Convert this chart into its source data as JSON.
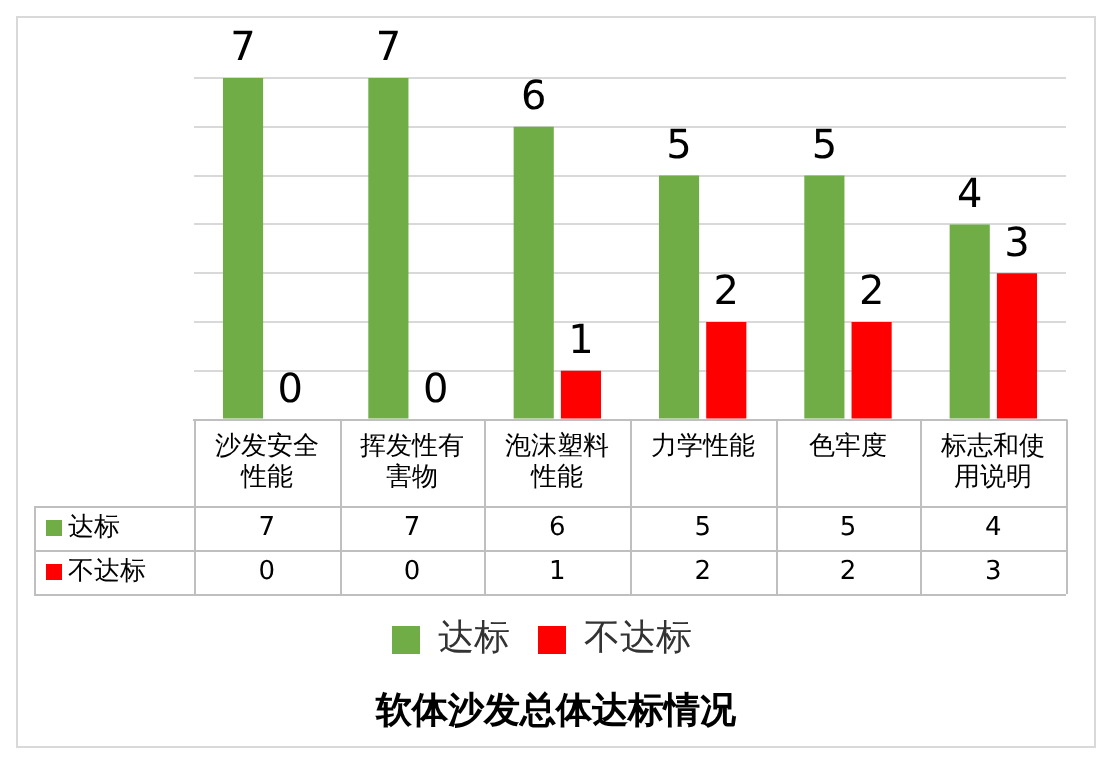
{
  "chart_data": {
    "type": "bar",
    "title": "软体沙发总体达标情况",
    "categories": [
      "沙发安全性能",
      "挥发性有害物",
      "泡沫塑料性能",
      "力学性能",
      "色牢度",
      "标志和使用说明"
    ],
    "series": [
      {
        "name": "达标",
        "color": "#70ad47",
        "values": [
          7,
          7,
          6,
          5,
          5,
          4
        ],
        "value_labels": [
          "7",
          "7",
          "6",
          "5",
          "5",
          "4"
        ]
      },
      {
        "name": "不达标",
        "color": "#ff0000",
        "values": [
          0,
          0,
          1,
          2,
          2,
          3
        ],
        "value_labels": [
          "0",
          "0",
          "1",
          "2",
          "2",
          "3"
        ]
      }
    ],
    "ylim": [
      0,
      7
    ],
    "yticks": [
      {
        "value": 0,
        "label": null
      },
      {
        "value": 1,
        "label": null
      },
      {
        "value": 2,
        "label": null
      },
      {
        "value": 3,
        "label": null
      },
      {
        "value": 4,
        "label": null
      },
      {
        "value": 5,
        "label": null
      },
      {
        "value": 6,
        "label": null
      },
      {
        "value": 7,
        "label": null
      }
    ],
    "tick_labels": "x",
    "grid": "y",
    "legend": "bottom",
    "data_labels": true
  }
}
